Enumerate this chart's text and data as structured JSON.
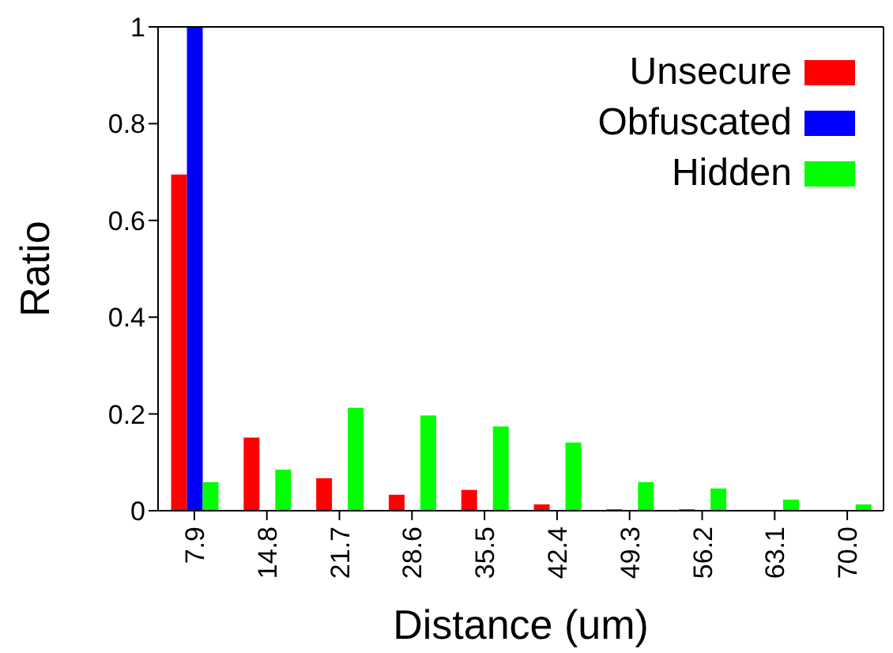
{
  "chart_data": {
    "type": "bar",
    "xlabel": "Distance (um)",
    "ylabel": "Ratio",
    "categories": [
      "7.9",
      "14.8",
      "21.7",
      "28.6",
      "35.5",
      "42.4",
      "49.3",
      "56.2",
      "63.1",
      "70.0"
    ],
    "series": [
      {
        "name": "Unsecure",
        "color": "#ff0000",
        "values": [
          0.695,
          0.151,
          0.067,
          0.033,
          0.043,
          0.013,
          0.003,
          0.003,
          0,
          0
        ]
      },
      {
        "name": "Obfuscated",
        "color": "#0000ff",
        "values": [
          1,
          0,
          0,
          0,
          0,
          0,
          0,
          0,
          0,
          0
        ]
      },
      {
        "name": "Hidden",
        "color": "#00ff00",
        "values": [
          0.059,
          0.085,
          0.213,
          0.197,
          0.174,
          0.141,
          0.059,
          0.046,
          0.023,
          0.013
        ]
      }
    ],
    "ylim": [
      0,
      1
    ],
    "yticks": [
      0,
      0.2,
      0.4,
      0.6,
      0.8,
      1
    ],
    "grid": false,
    "legend": "top right"
  }
}
